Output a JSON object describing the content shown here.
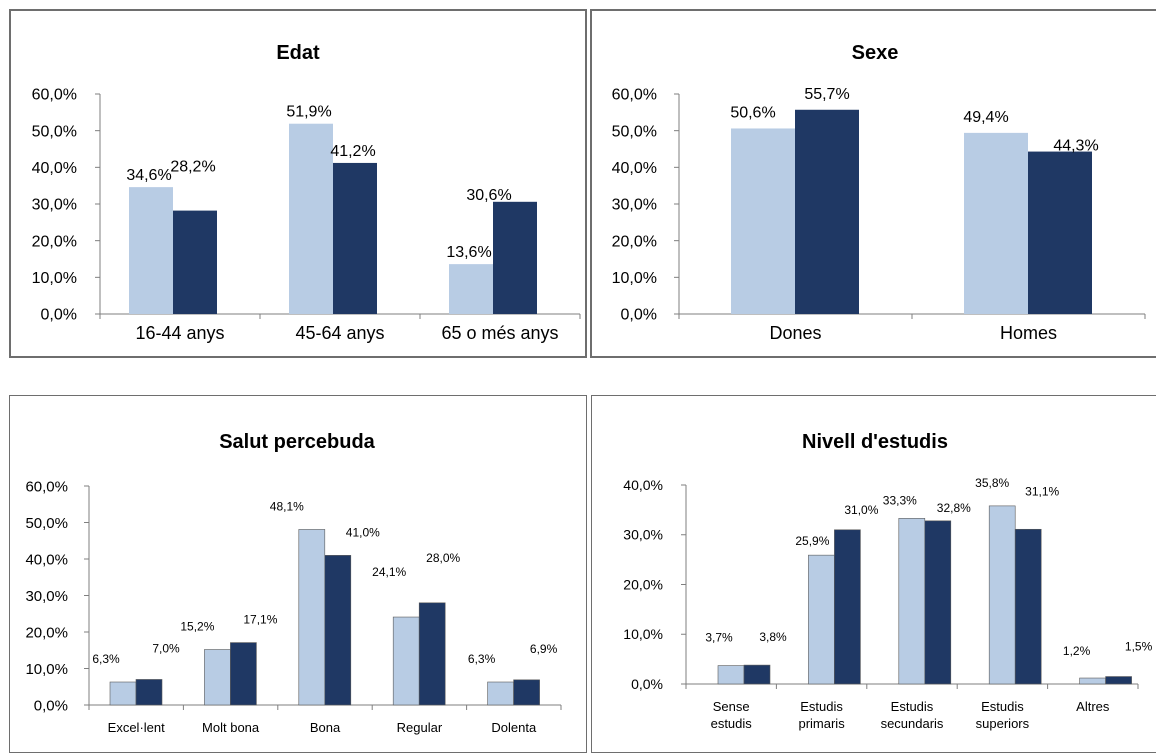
{
  "chart_data": [
    {
      "type": "bar",
      "title": "Edat",
      "categories": [
        "16-44 anys",
        "45-64 anys",
        "65 o més anys"
      ],
      "series": [
        {
          "values": [
            34.6,
            51.9,
            13.6
          ],
          "labels": [
            "34,6%",
            "51,9%",
            "13,6%"
          ]
        },
        {
          "values": [
            28.2,
            41.2,
            30.6
          ],
          "labels": [
            "28,2%",
            "41,2%",
            "30,6%"
          ]
        }
      ],
      "yticks": [
        "0,0%",
        "10,0%",
        "20,0%",
        "30,0%",
        "40,0%",
        "50,0%",
        "60,0%"
      ],
      "ylim": [
        0,
        60
      ],
      "grid": false
    },
    {
      "type": "bar",
      "title": "Sexe",
      "categories": [
        "Dones",
        "Homes"
      ],
      "series": [
        {
          "values": [
            50.6,
            49.4
          ],
          "labels": [
            "50,6%",
            "49,4%"
          ]
        },
        {
          "values": [
            55.7,
            44.3
          ],
          "labels": [
            "55,7%",
            "44,3%"
          ]
        }
      ],
      "yticks": [
        "0,0%",
        "10,0%",
        "20,0%",
        "30,0%",
        "40,0%",
        "50,0%",
        "60,0%"
      ],
      "ylim": [
        0,
        60
      ],
      "grid": false
    },
    {
      "type": "bar",
      "title": "Salut percebuda",
      "categories": [
        "Excel·lent",
        "Molt bona",
        "Bona",
        "Regular",
        "Dolenta"
      ],
      "series": [
        {
          "values": [
            6.3,
            15.2,
            48.1,
            24.1,
            6.3
          ],
          "labels": [
            "6,3%",
            "15,2%",
            "48,1%",
            "24,1%",
            "6,3%"
          ]
        },
        {
          "values": [
            7.0,
            17.1,
            41.0,
            28.0,
            6.9
          ],
          "labels": [
            "7,0%",
            "17,1%",
            "41,0%",
            "28,0%",
            "6,9%"
          ]
        }
      ],
      "yticks": [
        "0,0%",
        "10,0%",
        "20,0%",
        "30,0%",
        "40,0%",
        "50,0%",
        "60,0%"
      ],
      "ylim": [
        0,
        60
      ],
      "grid": false
    },
    {
      "type": "bar",
      "title": "Nivell d'estudis",
      "categories": [
        [
          "Sense",
          "estudis"
        ],
        [
          "Estudis",
          "primaris"
        ],
        [
          "Estudis",
          "secundaris"
        ],
        [
          "Estudis",
          "superiors"
        ],
        [
          "Altres"
        ]
      ],
      "series": [
        {
          "values": [
            3.7,
            25.9,
            33.3,
            35.8,
            1.2
          ],
          "labels": [
            "3,7%",
            "25,9%",
            "33,3%",
            "35,8%",
            "1,2%"
          ]
        },
        {
          "values": [
            3.8,
            31.0,
            32.8,
            31.1,
            1.5
          ],
          "labels": [
            "3,8%",
            "31,0%",
            "32,8%",
            "31,1%",
            "1,5%"
          ]
        }
      ],
      "yticks": [
        "0,0%",
        "10,0%",
        "20,0%",
        "30,0%",
        "40,0%"
      ],
      "ylim": [
        0,
        40
      ],
      "grid": false
    }
  ],
  "colors": {
    "series1": "#b8cce4",
    "series2": "#1f3864",
    "axis": "#7f7f7f",
    "border": "#6e6e6e"
  }
}
